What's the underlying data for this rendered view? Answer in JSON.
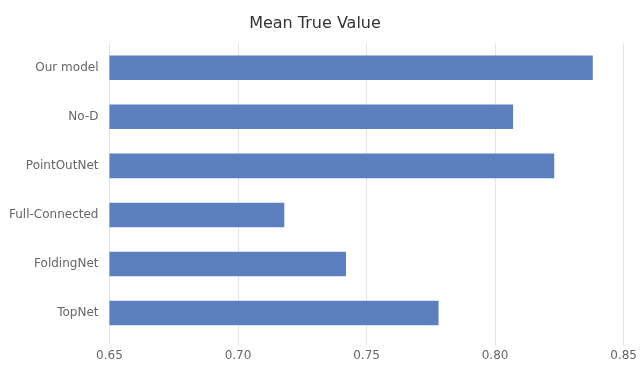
{
  "chart_data": {
    "type": "bar",
    "orientation": "horizontal",
    "title": "Mean True Value",
    "categories": [
      "Our model",
      "No-D",
      "PointOutNet",
      "Full-Connected",
      "FoldingNet",
      "TopNet"
    ],
    "values": [
      0.838,
      0.807,
      0.823,
      0.718,
      0.742,
      0.778
    ],
    "color": "#5b7fbf",
    "xlim": [
      0.65,
      0.85
    ],
    "xticks": [
      0.65,
      {
        "value": 0.7,
        "label": "0.70"
      },
      0.75,
      {
        "value": 0.8,
        "label": "0.80"
      },
      0.85
    ],
    "grid": true
  }
}
